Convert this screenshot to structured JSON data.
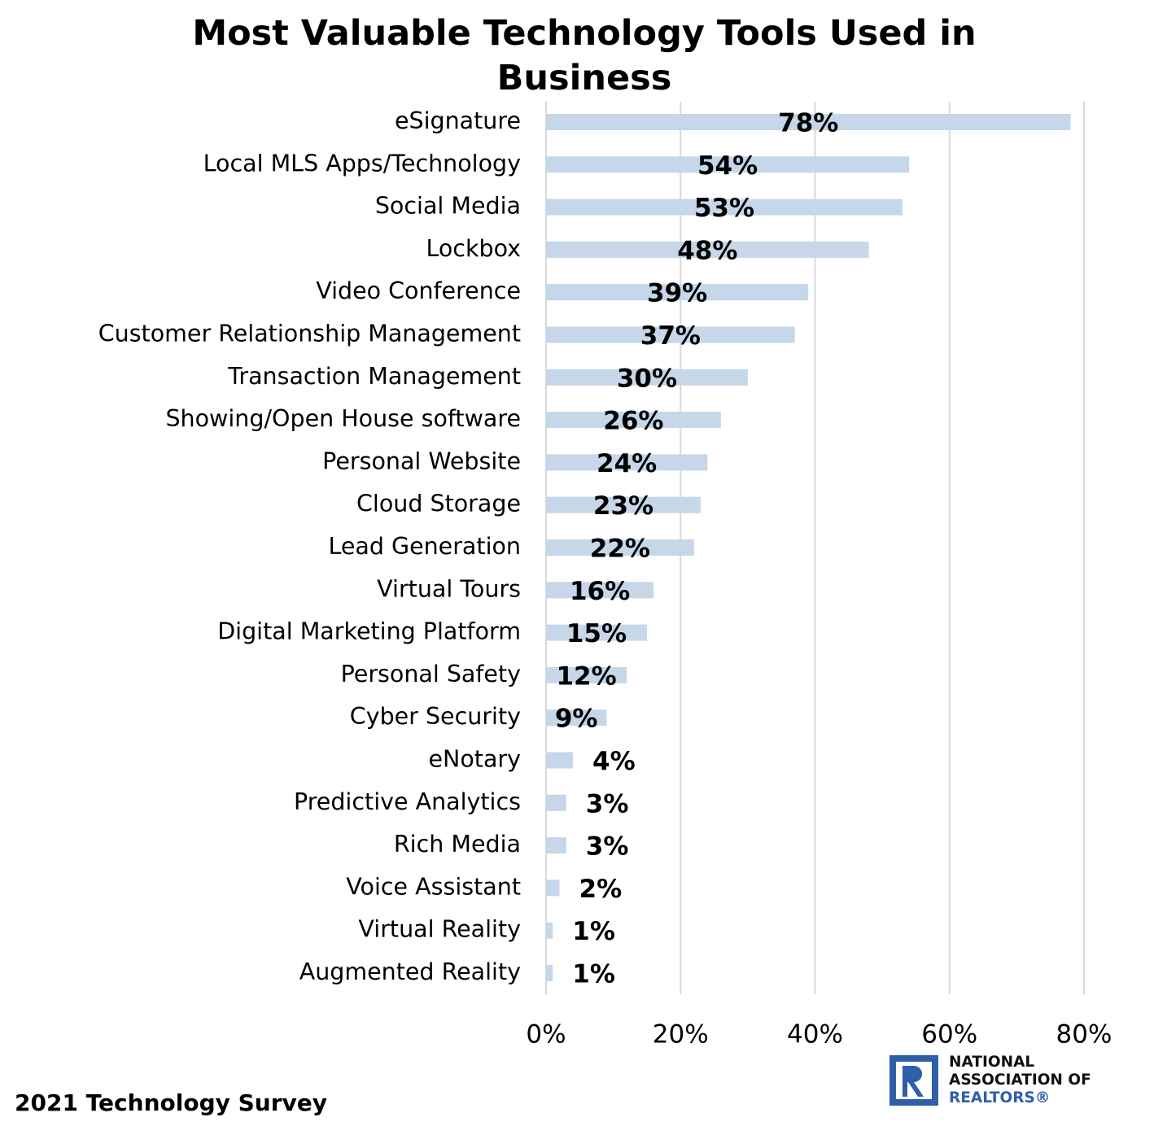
{
  "chart_data": {
    "type": "bar",
    "orientation": "horizontal",
    "title": "Most Valuable Technology Tools Used in Business",
    "categories": [
      "eSignature",
      "Local MLS Apps/Technology",
      "Social Media",
      "Lockbox",
      "Video Conference",
      "Customer Relationship Management",
      "Transaction Management",
      "Showing/Open House software",
      "Personal Website",
      "Cloud Storage",
      "Lead Generation",
      "Virtual Tours",
      "Digital Marketing Platform",
      "Personal Safety",
      "Cyber Security",
      "eNotary",
      "Predictive Analytics",
      "Rich Media",
      "Voice Assistant",
      "Virtual Reality",
      "Augmented Reality"
    ],
    "values": [
      78,
      54,
      53,
      48,
      39,
      37,
      30,
      26,
      24,
      23,
      22,
      16,
      15,
      12,
      9,
      4,
      3,
      3,
      2,
      1,
      1
    ],
    "value_labels": [
      "78%",
      "54%",
      "53%",
      "48%",
      "39%",
      "37%",
      "30%",
      "26%",
      "24%",
      "23%",
      "22%",
      "16%",
      "15%",
      "12%",
      "9%",
      "4%",
      "3%",
      "3%",
      "2%",
      "1%",
      "1%"
    ],
    "color": "#c5d7e8",
    "xlim": [
      0,
      80
    ],
    "xticks": [
      {
        "value": 0,
        "label": "0%"
      },
      {
        "value": 20,
        "label": "20%"
      },
      {
        "value": 40,
        "label": "40%"
      },
      {
        "value": 60,
        "label": "60%"
      },
      {
        "value": 80,
        "label": "80%"
      }
    ],
    "grid": true,
    "footer": "2021 Technology Survey",
    "logo": [
      "NATIONAL",
      "ASSOCIATION OF",
      "REALTORS®"
    ]
  }
}
